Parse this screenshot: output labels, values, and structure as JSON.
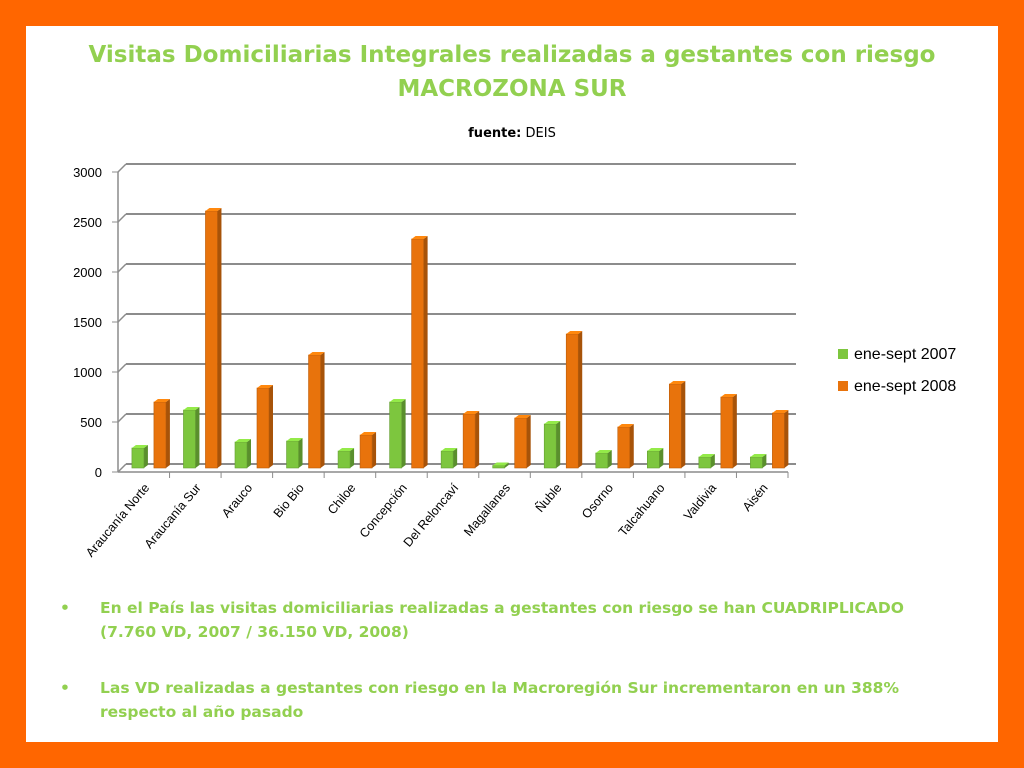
{
  "title": {
    "line1": "Visitas Domiciliarias Integrales realizadas a gestantes con riesgo",
    "line2": "MACROZONA SUR"
  },
  "source": {
    "label": "fuente:",
    "value": "DEIS"
  },
  "chart_data": {
    "type": "bar",
    "categories": [
      "Araucanía Norte",
      "Araucanía Sur",
      "Arauco",
      "Bio Bio",
      "Chiloe",
      "Concepción",
      "Del Reloncaví",
      "Magallanes",
      "Ñuble",
      "Osorno",
      "Talcahuano",
      "Valdivia",
      "Aisén"
    ],
    "series": [
      {
        "name": "ene-sept 2007",
        "color": "#7dc63e",
        "values": [
          200,
          580,
          260,
          270,
          170,
          660,
          170,
          25,
          440,
          150,
          170,
          110,
          110
        ]
      },
      {
        "name": "ene-sept 2008",
        "color": "#e8730c",
        "values": [
          660,
          2570,
          800,
          1130,
          330,
          2290,
          540,
          500,
          1340,
          410,
          840,
          710,
          550
        ]
      }
    ],
    "title": "",
    "xlabel": "",
    "ylabel": "",
    "ylim": [
      0,
      3000
    ],
    "yticks": [
      0,
      500,
      1000,
      1500,
      2000,
      2500,
      3000
    ],
    "grid": true,
    "legend": "right"
  },
  "bullets": [
    "En el País las visitas domiciliarias realizadas a gestantes con riesgo se han CUADRIPLICADO (7.760 VD, 2007 / 36.150 VD, 2008)",
    "Las VD realizadas a gestantes con riesgo en la Macroregión Sur incrementaron en un 388% respecto al año pasado"
  ],
  "bullet_symbol": "•"
}
